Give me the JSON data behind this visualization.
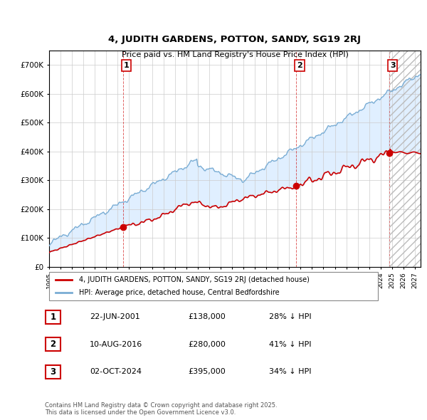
{
  "title_line1": "4, JUDITH GARDENS, POTTON, SANDY, SG19 2RJ",
  "title_line2": "Price paid vs. HM Land Registry's House Price Index (HPI)",
  "xlim_start": 1995.0,
  "xlim_end": 2027.5,
  "ylim": [
    0,
    750000
  ],
  "yticks": [
    0,
    100000,
    200000,
    300000,
    400000,
    500000,
    600000,
    700000
  ],
  "ytick_labels": [
    "£0",
    "£100K",
    "£200K",
    "£300K",
    "£400K",
    "£500K",
    "£600K",
    "£700K"
  ],
  "red_color": "#cc0000",
  "blue_color": "#7aadd4",
  "blue_fill_color": "#ddeeff",
  "sale_markers": [
    {
      "date_num": 2001.47,
      "price": 138000,
      "label": "1"
    },
    {
      "date_num": 2016.61,
      "price": 280000,
      "label": "2"
    },
    {
      "date_num": 2024.75,
      "price": 395000,
      "label": "3"
    }
  ],
  "vline_dates": [
    2001.47,
    2016.61,
    2024.75
  ],
  "legend_red_label": "4, JUDITH GARDENS, POTTON, SANDY, SG19 2RJ (detached house)",
  "legend_blue_label": "HPI: Average price, detached house, Central Bedfordshire",
  "table_rows": [
    {
      "num": "1",
      "date": "22-JUN-2001",
      "price": "£138,000",
      "hpi": "28% ↓ HPI"
    },
    {
      "num": "2",
      "date": "10-AUG-2016",
      "price": "£280,000",
      "hpi": "41% ↓ HPI"
    },
    {
      "num": "3",
      "date": "02-OCT-2024",
      "price": "£395,000",
      "hpi": "34% ↓ HPI"
    }
  ],
  "footnote": "Contains HM Land Registry data © Crown copyright and database right 2025.\nThis data is licensed under the Open Government Licence v3.0.",
  "background_color": "#ffffff",
  "plot_bg_color": "#ffffff",
  "grid_color": "#cccccc"
}
